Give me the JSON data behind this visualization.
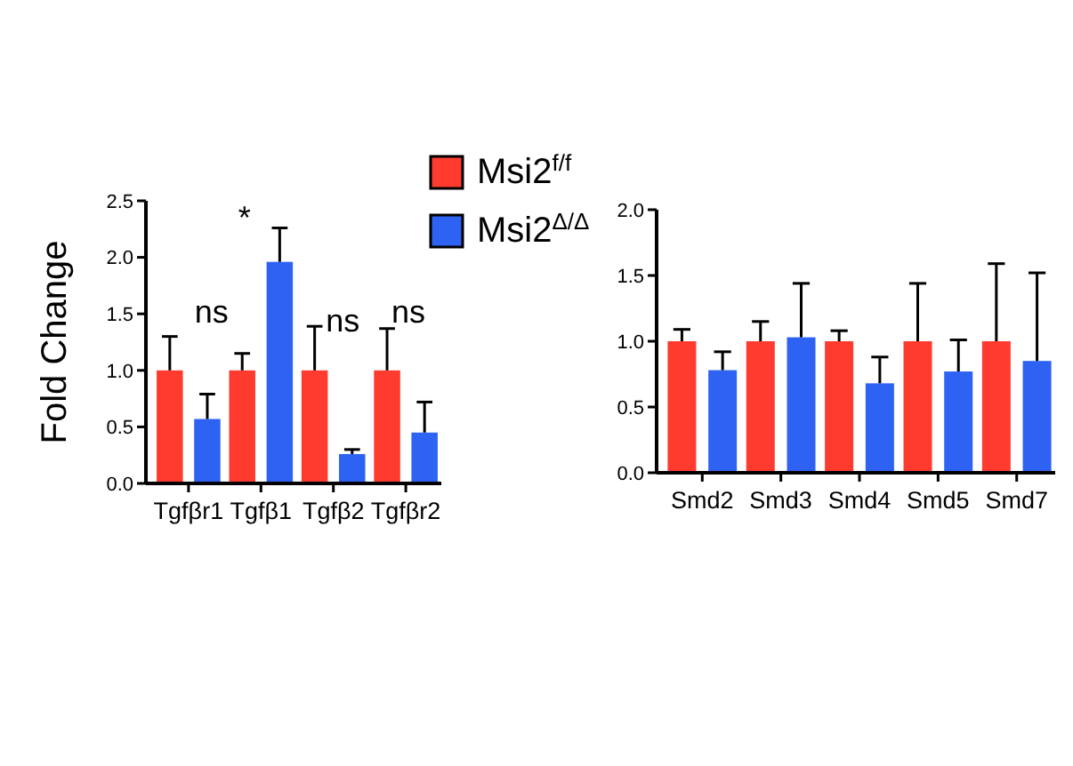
{
  "chart_data": [
    {
      "type": "bar",
      "ylabel": "Fold Change",
      "categories": [
        "Tgfβr1",
        "Tgfβ1",
        "Tgfβ2",
        "Tgfβr2"
      ],
      "ylim": [
        0,
        2.5
      ],
      "yticks": [
        {
          "value": 0,
          "label": "0.0"
        },
        {
          "value": 0.5,
          "label": "0.5"
        },
        {
          "value": 1,
          "label": "1.0"
        },
        {
          "value": 1.5,
          "label": "1.5"
        },
        {
          "value": 2,
          "label": "2.0"
        },
        {
          "value": 2.5,
          "label": "2.5"
        }
      ],
      "legend": "top right",
      "grid": false,
      "series": [
        {
          "name": "Msi2$^{f/f}$",
          "color": "#ff3b2f",
          "values": [
            1,
            1,
            1,
            1
          ],
          "errors": [
            [
              1,
              1.3
            ],
            [
              1,
              1.15
            ],
            [
              1,
              1.39
            ],
            [
              1,
              1.37
            ]
          ]
        },
        {
          "name": "Msi2$^{Δ/Δ}$",
          "color": "#2e62f2",
          "values": [
            0.57,
            1.96,
            0.26,
            0.45
          ],
          "errors": [
            [
              0.57,
              0.79
            ],
            [
              1.96,
              2.26
            ],
            [
              0.26,
              0.3
            ],
            [
              0.45,
              0.72
            ]
          ]
        }
      ],
      "annotations": [
        "ns",
        "*",
        "ns",
        "ns"
      ]
    },
    {
      "type": "bar",
      "categories": [
        "Smd2",
        "Smd3",
        "Smd4",
        "Smd5",
        "Smd7"
      ],
      "ylim": [
        0,
        2
      ],
      "yticks": [
        {
          "value": 0,
          "label": "0.0"
        },
        {
          "value": 0.5,
          "label": "0.5"
        },
        {
          "value": 1,
          "label": "1.0"
        },
        {
          "value": 1.5,
          "label": "1.5"
        },
        {
          "value": 2,
          "label": "2.0"
        }
      ],
      "grid": false,
      "series": [
        {
          "color": "#ff3b2f",
          "values": [
            1,
            1,
            1,
            1,
            1
          ],
          "errors": [
            [
              1,
              1.09
            ],
            [
              1,
              1.15
            ],
            [
              1,
              1.08
            ],
            [
              1,
              1.44
            ],
            [
              1,
              1.59
            ]
          ]
        },
        {
          "color": "#2e62f2",
          "values": [
            0.78,
            1.03,
            0.68,
            0.77,
            0.85
          ],
          "errors": [
            [
              0.78,
              0.92
            ],
            [
              1.03,
              1.44
            ],
            [
              0.68,
              0.88
            ],
            [
              0.77,
              1.01
            ],
            [
              0.85,
              1.52
            ]
          ]
        }
      ]
    }
  ]
}
